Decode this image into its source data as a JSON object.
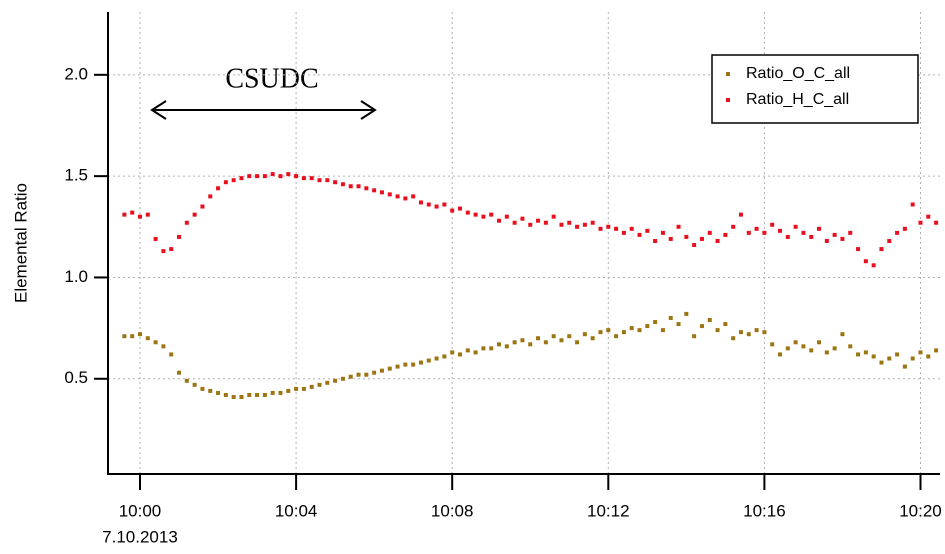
{
  "chart_data": {
    "type": "scatter",
    "ylabel": "Elemental Ratio",
    "date_label": "7.10.2013",
    "annotation": "CSUDC",
    "grid": true,
    "legend": "upper right",
    "xlim": [
      599.18,
      620.5
    ],
    "ylim": [
      0.03,
      2.31
    ],
    "xticks": [
      {
        "value": 600,
        "label": "10:00"
      },
      {
        "value": 604,
        "label": "10:04"
      },
      {
        "value": 608,
        "label": "10:08"
      },
      {
        "value": 612,
        "label": "10:12"
      },
      {
        "value": 616,
        "label": "10:16"
      },
      {
        "value": 620,
        "label": "10:20"
      }
    ],
    "yticks": [
      0.5,
      {
        "value": 1,
        "label": "1.0"
      },
      1.5,
      {
        "value": 2,
        "label": "2.0"
      }
    ],
    "x": [
      599.6,
      599.8,
      600,
      600.2,
      600.4,
      600.6,
      600.8,
      601,
      601.2,
      601.4,
      601.6,
      601.8,
      602,
      602.2,
      602.4,
      602.6,
      602.8,
      603,
      603.2,
      603.4,
      603.6,
      603.8,
      604,
      604.2,
      604.4,
      604.6,
      604.8,
      605,
      605.2,
      605.4,
      605.6,
      605.8,
      606,
      606.2,
      606.4,
      606.6,
      606.8,
      607,
      607.2,
      607.4,
      607.6,
      607.8,
      608,
      608.2,
      608.4,
      608.6,
      608.8,
      609,
      609.2,
      609.4,
      609.6,
      609.8,
      610,
      610.2,
      610.4,
      610.6,
      610.8,
      611,
      611.2,
      611.4,
      611.6,
      611.8,
      612,
      612.2,
      612.4,
      612.6,
      612.8,
      613,
      613.2,
      613.4,
      613.6,
      613.8,
      614,
      614.2,
      614.4,
      614.6,
      614.8,
      615,
      615.2,
      615.4,
      615.6,
      615.8,
      616,
      616.2,
      616.4,
      616.6,
      616.8,
      617,
      617.2,
      617.4,
      617.6,
      617.8,
      618,
      618.2,
      618.4,
      618.6,
      618.8,
      619,
      619.2,
      619.4,
      619.6,
      619.8,
      620,
      620.2,
      620.4
    ],
    "series": [
      {
        "name": "Ratio_O_C_all",
        "color": "#9c7512",
        "values": [
          0.71,
          0.71,
          0.72,
          0.7,
          0.68,
          0.66,
          0.62,
          0.53,
          0.49,
          0.47,
          0.45,
          0.44,
          0.43,
          0.42,
          0.41,
          0.41,
          0.42,
          0.42,
          0.42,
          0.43,
          0.43,
          0.44,
          0.45,
          0.45,
          0.46,
          0.47,
          0.48,
          0.49,
          0.5,
          0.51,
          0.52,
          0.52,
          0.53,
          0.54,
          0.55,
          0.56,
          0.57,
          0.57,
          0.58,
          0.59,
          0.6,
          0.61,
          0.63,
          0.62,
          0.64,
          0.63,
          0.65,
          0.65,
          0.67,
          0.66,
          0.68,
          0.69,
          0.67,
          0.7,
          0.68,
          0.71,
          0.69,
          0.71,
          0.68,
          0.72,
          0.7,
          0.73,
          0.74,
          0.71,
          0.73,
          0.75,
          0.74,
          0.76,
          0.78,
          0.74,
          0.8,
          0.77,
          0.82,
          0.71,
          0.76,
          0.79,
          0.74,
          0.77,
          0.7,
          0.73,
          0.72,
          0.74,
          0.73,
          0.67,
          0.62,
          0.65,
          0.68,
          0.66,
          0.64,
          0.68,
          0.63,
          0.65,
          0.72,
          0.66,
          0.62,
          0.63,
          0.61,
          0.58,
          0.6,
          0.62,
          0.56,
          0.6,
          0.63,
          0.61,
          0.64
        ]
      },
      {
        "name": "Ratio_H_C_all",
        "color": "#e8101e",
        "values": [
          1.31,
          1.32,
          1.3,
          1.31,
          1.19,
          1.13,
          1.14,
          1.2,
          1.27,
          1.31,
          1.35,
          1.4,
          1.44,
          1.47,
          1.48,
          1.49,
          1.5,
          1.5,
          1.5,
          1.51,
          1.5,
          1.51,
          1.5,
          1.49,
          1.49,
          1.48,
          1.48,
          1.47,
          1.46,
          1.45,
          1.45,
          1.44,
          1.43,
          1.42,
          1.41,
          1.4,
          1.39,
          1.4,
          1.37,
          1.36,
          1.35,
          1.36,
          1.33,
          1.34,
          1.32,
          1.31,
          1.3,
          1.31,
          1.28,
          1.3,
          1.27,
          1.29,
          1.26,
          1.28,
          1.27,
          1.3,
          1.26,
          1.27,
          1.25,
          1.26,
          1.27,
          1.24,
          1.25,
          1.24,
          1.22,
          1.24,
          1.21,
          1.23,
          1.18,
          1.22,
          1.19,
          1.25,
          1.2,
          1.16,
          1.19,
          1.22,
          1.18,
          1.21,
          1.25,
          1.31,
          1.22,
          1.24,
          1.22,
          1.26,
          1.23,
          1.2,
          1.25,
          1.22,
          1.2,
          1.24,
          1.18,
          1.21,
          1.19,
          1.22,
          1.14,
          1.08,
          1.06,
          1.14,
          1.18,
          1.22,
          1.24,
          1.36,
          1.27,
          1.3,
          1.27
        ]
      }
    ]
  }
}
